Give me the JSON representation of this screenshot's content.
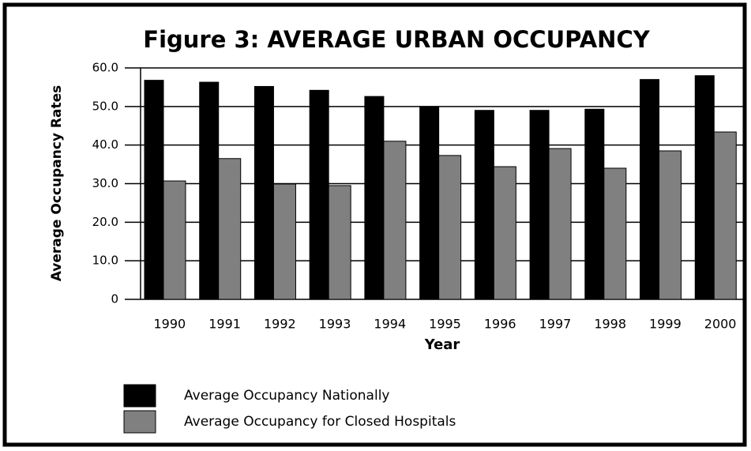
{
  "chart_data": {
    "type": "bar",
    "title": "Figure 3: AVERAGE URBAN OCCUPANCY",
    "x_label": "Year",
    "y_label": "Average Occupancy Rates",
    "categories": [
      "1990",
      "1991",
      "1992",
      "1993",
      "1994",
      "1995",
      "1996",
      "1997",
      "1998",
      "1999",
      "2000"
    ],
    "series": [
      {
        "name": "Average Occupancy Nationally",
        "color": "#000000",
        "values": [
          56.8,
          56.3,
          55.2,
          54.2,
          52.6,
          50.0,
          49.0,
          49.0,
          49.3,
          57.0,
          58.0
        ]
      },
      {
        "name": "Average Occupancy for Closed Hospitals",
        "color": "#808080",
        "values": [
          30.7,
          36.5,
          29.9,
          29.5,
          41.0,
          37.3,
          34.4,
          39.1,
          34.0,
          38.5,
          43.4
        ]
      }
    ],
    "ylim": [
      0,
      60
    ],
    "yticks": [
      0,
      {
        "value": 10,
        "label": "10.0"
      },
      {
        "value": 20,
        "label": "20.0"
      },
      {
        "value": 30,
        "label": "30.0"
      },
      {
        "value": 40,
        "label": "40.0"
      },
      {
        "value": 50,
        "label": "50.0"
      },
      {
        "value": 60,
        "label": "60.0"
      }
    ],
    "grid": true,
    "legend": "bottom"
  }
}
